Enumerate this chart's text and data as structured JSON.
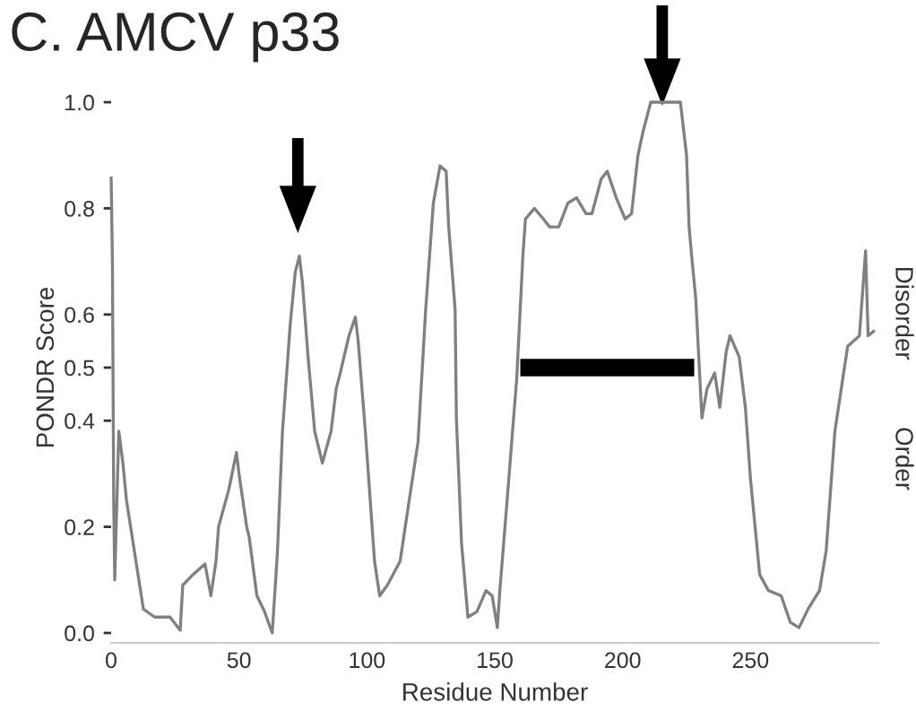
{
  "chart_data": {
    "type": "line",
    "title": "C. AMCV p33",
    "xlabel": "Residue Number",
    "ylabel": "PONDR Score",
    "annotations": [
      "Disorder",
      "Order"
    ],
    "xlim": [
      0,
      300
    ],
    "ylim": [
      0,
      1.0
    ],
    "xticks": [
      0,
      50,
      100,
      150,
      200,
      250
    ],
    "yticks": [
      {
        "value": 0.0,
        "label": "0.0"
      },
      {
        "value": 0.2,
        "label": "0.2"
      },
      {
        "value": 0.4,
        "label": "0.4"
      },
      {
        "value": 0.5,
        "label": "0.5"
      },
      {
        "value": 0.6,
        "label": "0.6"
      },
      {
        "value": 0.8,
        "label": "0.8"
      },
      {
        "value": 1.0,
        "label": "1.0"
      }
    ],
    "grid": false,
    "legend": false,
    "series": [
      {
        "color": "#808080",
        "x": [
          0,
          0.5,
          1,
          1.4,
          3,
          4.6,
          6,
          12.6,
          17,
          23,
          27,
          28,
          32,
          36.7,
          39,
          41,
          42,
          46,
          49,
          50,
          53,
          54,
          57,
          60,
          63,
          65,
          67,
          70,
          72,
          73.6,
          74.8,
          77,
          79.6,
          82.6,
          86,
          88,
          89.6,
          93,
          95.5,
          96.6,
          99.4,
          103,
          105,
          108,
          113,
          115,
          120,
          123,
          126,
          128.6,
          131,
          132,
          134.5,
          135,
          137,
          139.5,
          143,
          146.6,
          149,
          151,
          152,
          155,
          158.6,
          161,
          162,
          165.5,
          169,
          171.5,
          175,
          178.6,
          182,
          185.7,
          188,
          191.6,
          194,
          197.5,
          201,
          203.5,
          206,
          208,
          211,
          222.6,
          225,
          226,
          227,
          228.6,
          231,
          233,
          236,
          238,
          240.5,
          242,
          245.6,
          248,
          250,
          253.6,
          257,
          262,
          265.6,
          269,
          272.5,
          277,
          279.6,
          283,
          288,
          292.6,
          295,
          296,
          298.6
        ],
        "values": [
          0.86,
          0.7,
          0.25,
          0.1,
          0.38,
          0.32,
          0.25,
          0.045,
          0.03,
          0.03,
          0.005,
          0.09,
          0.11,
          0.13,
          0.07,
          0.135,
          0.2,
          0.27,
          0.34,
          0.3,
          0.2,
          0.18,
          0.07,
          0.04,
          0.0,
          0.15,
          0.38,
          0.58,
          0.68,
          0.71,
          0.66,
          0.52,
          0.38,
          0.32,
          0.38,
          0.46,
          0.49,
          0.56,
          0.595,
          0.55,
          0.38,
          0.135,
          0.07,
          0.09,
          0.135,
          0.2,
          0.36,
          0.61,
          0.81,
          0.88,
          0.87,
          0.765,
          0.61,
          0.405,
          0.17,
          0.03,
          0.04,
          0.08,
          0.07,
          0.01,
          0.08,
          0.26,
          0.48,
          0.71,
          0.78,
          0.8,
          0.78,
          0.765,
          0.765,
          0.81,
          0.82,
          0.79,
          0.79,
          0.855,
          0.87,
          0.82,
          0.78,
          0.79,
          0.9,
          0.945,
          1.0,
          1.0,
          0.9,
          0.765,
          0.71,
          0.63,
          0.405,
          0.46,
          0.49,
          0.425,
          0.53,
          0.56,
          0.52,
          0.425,
          0.29,
          0.11,
          0.08,
          0.07,
          0.02,
          0.01,
          0.045,
          0.08,
          0.155,
          0.38,
          0.54,
          0.56,
          0.72,
          0.56,
          0.57
        ]
      },
      {
        "color": "#000000",
        "x": [
          160,
          228
        ],
        "values": [
          0.5,
          0.5
        ]
      }
    ]
  }
}
